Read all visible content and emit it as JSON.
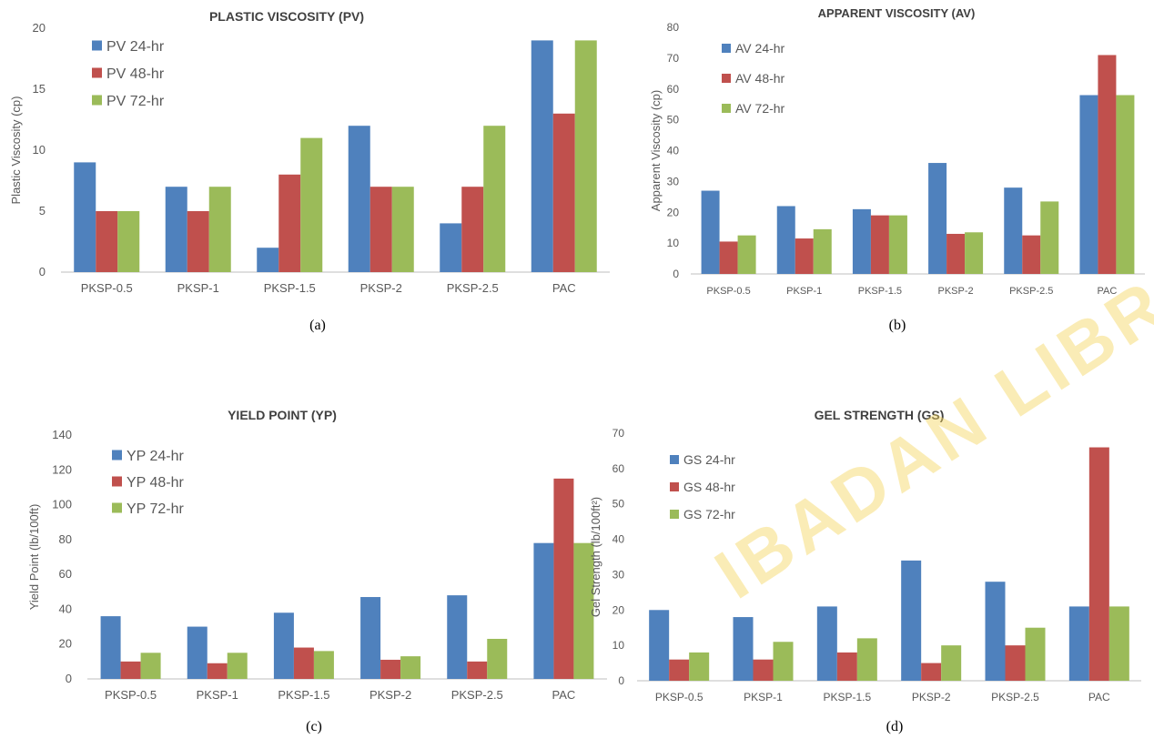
{
  "watermark": "IBADAN LIBRARY",
  "colors": {
    "s24": "#4f81bd",
    "s48": "#c0504d",
    "s72": "#9bbb59",
    "axis": "#bfbfbf",
    "text": "#595959",
    "title": "#404040"
  },
  "chart_data": [
    {
      "type": "bar",
      "title": "PLASTIC VISCOSITY (PV)",
      "ylabel": "Plastic Viscosity (cp)",
      "panel": "(a)",
      "categories": [
        "PKSP-0.5",
        "PKSP-1",
        "PKSP-1.5",
        "PKSP-2",
        "PKSP-2.5",
        "PAC"
      ],
      "ylim": [
        0,
        20
      ],
      "yticks": [
        0,
        5,
        10,
        15,
        20
      ],
      "legend": "top-left",
      "series": [
        {
          "name": "PV 24-hr",
          "values": [
            9,
            7,
            2,
            12,
            4,
            19
          ]
        },
        {
          "name": "PV 48-hr",
          "values": [
            5,
            5,
            8,
            7,
            7,
            13
          ]
        },
        {
          "name": "PV 72-hr",
          "values": [
            5,
            7,
            11,
            7,
            12,
            19
          ]
        }
      ]
    },
    {
      "type": "bar",
      "title": "APPARENT VISCOSITY (AV)",
      "ylabel": "Apparent Viscosity (cp)",
      "panel": "(b)",
      "categories": [
        "PKSP-0.5",
        "PKSP-1",
        "PKSP-1.5",
        "PKSP-2",
        "PKSP-2.5",
        "PAC"
      ],
      "ylim": [
        0,
        80
      ],
      "yticks": [
        0,
        10,
        20,
        30,
        40,
        50,
        60,
        70,
        80
      ],
      "legend": "top-left",
      "series": [
        {
          "name": "AV 24-hr",
          "values": [
            27,
            22,
            21,
            36,
            28,
            58
          ]
        },
        {
          "name": "AV 48-hr",
          "values": [
            10.5,
            11.5,
            19,
            13,
            12.5,
            71
          ]
        },
        {
          "name": "AV 72-hr",
          "values": [
            12.5,
            14.5,
            19,
            13.5,
            23.5,
            58
          ]
        }
      ]
    },
    {
      "type": "bar",
      "title": "YIELD POINT (YP)",
      "ylabel": "Yield Point (lb/100ft)",
      "panel": "(c)",
      "categories": [
        "PKSP-0.5",
        "PKSP-1",
        "PKSP-1.5",
        "PKSP-2",
        "PKSP-2.5",
        "PAC"
      ],
      "ylim": [
        0,
        140
      ],
      "yticks": [
        0,
        20,
        40,
        60,
        80,
        100,
        120,
        140
      ],
      "legend": "top-left",
      "series": [
        {
          "name": "YP 24-hr",
          "values": [
            36,
            30,
            38,
            47,
            48,
            78
          ]
        },
        {
          "name": "YP 48-hr",
          "values": [
            10,
            9,
            18,
            11,
            10,
            115
          ]
        },
        {
          "name": "YP 72-hr",
          "values": [
            15,
            15,
            16,
            13,
            23,
            78
          ]
        }
      ]
    },
    {
      "type": "bar",
      "title": "GEL STRENGTH (GS)",
      "ylabel": "Gel Strength (lb/100ft²)",
      "panel": "(d)",
      "categories": [
        "PKSP-0.5",
        "PKSP-1",
        "PKSP-1.5",
        "PKSP-2",
        "PKSP-2.5",
        "PAC"
      ],
      "ylim": [
        0,
        70
      ],
      "yticks": [
        0,
        10,
        20,
        30,
        40,
        50,
        60,
        70
      ],
      "legend": "top-left",
      "series": [
        {
          "name": "GS 24-hr",
          "values": [
            20,
            18,
            21,
            34,
            28,
            21
          ]
        },
        {
          "name": "GS 48-hr",
          "values": [
            6,
            6,
            8,
            5,
            10,
            66
          ]
        },
        {
          "name": "GS 72-hr",
          "values": [
            8,
            11,
            12,
            10,
            15,
            21
          ]
        }
      ]
    }
  ]
}
